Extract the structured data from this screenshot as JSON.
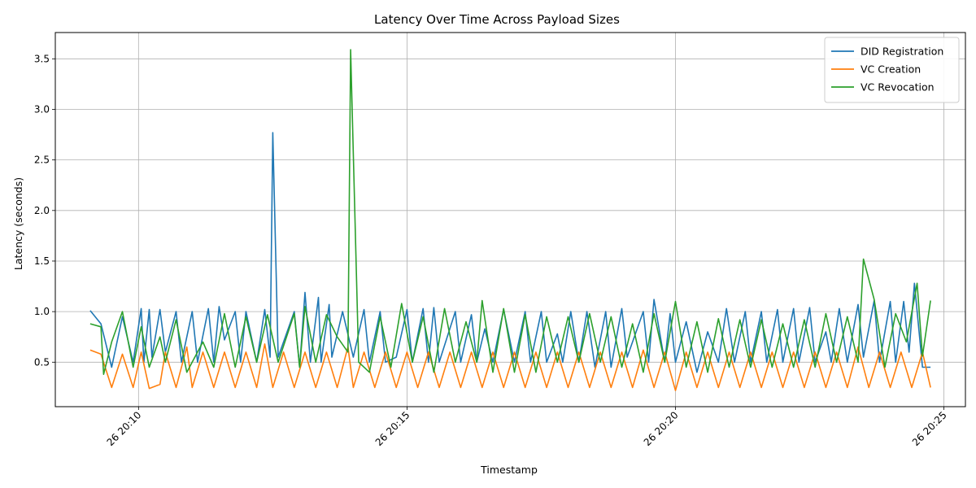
{
  "chart_data": {
    "type": "line",
    "title": "Latency Over Time Across Payload Sizes",
    "xlabel": "Timestamp",
    "ylabel": "Latency (seconds)",
    "x_ticks": [
      "26 20:10",
      "26 20:15",
      "26 20:20",
      "26 20:25"
    ],
    "x_tick_minutes": [
      10,
      15,
      20,
      25
    ],
    "xlim_minutes": [
      8.45,
      25.4
    ],
    "y_ticks": [
      0.5,
      1.0,
      1.5,
      2.0,
      2.5,
      3.0,
      3.5
    ],
    "ylim": [
      0.06,
      3.76
    ],
    "grid": true,
    "legend_position": "top-right",
    "series": [
      {
        "name": "DID Registration",
        "color": "#1f77b4",
        "points": [
          [
            9.1,
            1.01
          ],
          [
            9.3,
            0.88
          ],
          [
            9.5,
            0.45
          ],
          [
            9.7,
            0.95
          ],
          [
            9.9,
            0.5
          ],
          [
            10.05,
            1.03
          ],
          [
            10.1,
            0.5
          ],
          [
            10.2,
            1.02
          ],
          [
            10.25,
            0.55
          ],
          [
            10.4,
            1.02
          ],
          [
            10.5,
            0.6
          ],
          [
            10.7,
            1.0
          ],
          [
            10.8,
            0.5
          ],
          [
            11.0,
            1.0
          ],
          [
            11.1,
            0.5
          ],
          [
            11.3,
            1.03
          ],
          [
            11.4,
            0.5
          ],
          [
            11.5,
            1.05
          ],
          [
            11.6,
            0.72
          ],
          [
            11.8,
            1.0
          ],
          [
            11.9,
            0.5
          ],
          [
            12.0,
            1.0
          ],
          [
            12.2,
            0.5
          ],
          [
            12.35,
            1.02
          ],
          [
            12.45,
            0.55
          ],
          [
            12.5,
            2.77
          ],
          [
            12.6,
            0.55
          ],
          [
            12.9,
            1.0
          ],
          [
            13.0,
            0.45
          ],
          [
            13.1,
            1.19
          ],
          [
            13.2,
            0.5
          ],
          [
            13.35,
            1.14
          ],
          [
            13.4,
            0.5
          ],
          [
            13.55,
            1.07
          ],
          [
            13.6,
            0.55
          ],
          [
            13.8,
            1.0
          ],
          [
            14.0,
            0.55
          ],
          [
            14.2,
            1.02
          ],
          [
            14.3,
            0.5
          ],
          [
            14.5,
            1.0
          ],
          [
            14.6,
            0.5
          ],
          [
            14.8,
            0.55
          ],
          [
            15.0,
            1.02
          ],
          [
            15.1,
            0.5
          ],
          [
            15.3,
            1.03
          ],
          [
            15.4,
            0.5
          ],
          [
            15.5,
            1.04
          ],
          [
            15.6,
            0.5
          ],
          [
            15.9,
            1.0
          ],
          [
            16.0,
            0.5
          ],
          [
            16.2,
            0.97
          ],
          [
            16.3,
            0.5
          ],
          [
            16.45,
            0.83
          ],
          [
            16.6,
            0.5
          ],
          [
            16.8,
            1.02
          ],
          [
            17.0,
            0.5
          ],
          [
            17.2,
            1.0
          ],
          [
            17.3,
            0.5
          ],
          [
            17.5,
            1.0
          ],
          [
            17.6,
            0.5
          ],
          [
            17.8,
            0.78
          ],
          [
            17.9,
            0.5
          ],
          [
            18.05,
            1.0
          ],
          [
            18.2,
            0.5
          ],
          [
            18.35,
            1.0
          ],
          [
            18.5,
            0.45
          ],
          [
            18.7,
            1.0
          ],
          [
            18.8,
            0.45
          ],
          [
            19.0,
            1.03
          ],
          [
            19.1,
            0.55
          ],
          [
            19.4,
            1.0
          ],
          [
            19.5,
            0.5
          ],
          [
            19.6,
            1.12
          ],
          [
            19.8,
            0.5
          ],
          [
            19.9,
            0.98
          ],
          [
            20.0,
            0.5
          ],
          [
            20.2,
            0.9
          ],
          [
            20.4,
            0.4
          ],
          [
            20.6,
            0.8
          ],
          [
            20.8,
            0.5
          ],
          [
            20.95,
            1.03
          ],
          [
            21.1,
            0.5
          ],
          [
            21.3,
            1.0
          ],
          [
            21.4,
            0.5
          ],
          [
            21.6,
            1.0
          ],
          [
            21.7,
            0.5
          ],
          [
            21.9,
            1.02
          ],
          [
            22.0,
            0.5
          ],
          [
            22.2,
            1.03
          ],
          [
            22.3,
            0.5
          ],
          [
            22.5,
            1.04
          ],
          [
            22.6,
            0.5
          ],
          [
            22.8,
            0.8
          ],
          [
            22.9,
            0.5
          ],
          [
            23.05,
            1.03
          ],
          [
            23.2,
            0.5
          ],
          [
            23.4,
            1.07
          ],
          [
            23.5,
            0.55
          ],
          [
            23.7,
            1.11
          ],
          [
            23.8,
            0.5
          ],
          [
            24.0,
            1.1
          ],
          [
            24.1,
            0.5
          ],
          [
            24.25,
            1.1
          ],
          [
            24.35,
            0.6
          ],
          [
            24.45,
            1.28
          ],
          [
            24.6,
            0.45
          ],
          [
            24.75,
            0.45
          ]
        ]
      },
      {
        "name": "VC Creation",
        "color": "#ff7f0e",
        "points": [
          [
            9.1,
            0.62
          ],
          [
            9.3,
            0.58
          ],
          [
            9.5,
            0.25
          ],
          [
            9.7,
            0.58
          ],
          [
            9.9,
            0.25
          ],
          [
            10.05,
            0.6
          ],
          [
            10.2,
            0.24
          ],
          [
            10.4,
            0.28
          ],
          [
            10.5,
            0.6
          ],
          [
            10.7,
            0.25
          ],
          [
            10.9,
            0.65
          ],
          [
            11.0,
            0.25
          ],
          [
            11.2,
            0.6
          ],
          [
            11.4,
            0.25
          ],
          [
            11.6,
            0.6
          ],
          [
            11.8,
            0.25
          ],
          [
            12.0,
            0.6
          ],
          [
            12.2,
            0.25
          ],
          [
            12.35,
            0.68
          ],
          [
            12.5,
            0.25
          ],
          [
            12.7,
            0.6
          ],
          [
            12.9,
            0.25
          ],
          [
            13.1,
            0.6
          ],
          [
            13.3,
            0.25
          ],
          [
            13.5,
            0.6
          ],
          [
            13.7,
            0.25
          ],
          [
            13.9,
            0.65
          ],
          [
            14.0,
            0.25
          ],
          [
            14.2,
            0.6
          ],
          [
            14.4,
            0.25
          ],
          [
            14.6,
            0.6
          ],
          [
            14.8,
            0.25
          ],
          [
            15.0,
            0.6
          ],
          [
            15.2,
            0.25
          ],
          [
            15.4,
            0.6
          ],
          [
            15.6,
            0.25
          ],
          [
            15.8,
            0.6
          ],
          [
            16.0,
            0.25
          ],
          [
            16.2,
            0.6
          ],
          [
            16.4,
            0.25
          ],
          [
            16.6,
            0.6
          ],
          [
            16.8,
            0.25
          ],
          [
            17.0,
            0.6
          ],
          [
            17.2,
            0.25
          ],
          [
            17.4,
            0.6
          ],
          [
            17.6,
            0.25
          ],
          [
            17.8,
            0.6
          ],
          [
            18.0,
            0.25
          ],
          [
            18.2,
            0.6
          ],
          [
            18.4,
            0.25
          ],
          [
            18.6,
            0.6
          ],
          [
            18.8,
            0.25
          ],
          [
            19.0,
            0.6
          ],
          [
            19.2,
            0.25
          ],
          [
            19.4,
            0.62
          ],
          [
            19.6,
            0.25
          ],
          [
            19.8,
            0.6
          ],
          [
            20.0,
            0.22
          ],
          [
            20.2,
            0.6
          ],
          [
            20.4,
            0.25
          ],
          [
            20.6,
            0.6
          ],
          [
            20.8,
            0.25
          ],
          [
            21.0,
            0.6
          ],
          [
            21.2,
            0.25
          ],
          [
            21.4,
            0.6
          ],
          [
            21.6,
            0.25
          ],
          [
            21.8,
            0.6
          ],
          [
            22.0,
            0.25
          ],
          [
            22.2,
            0.6
          ],
          [
            22.4,
            0.25
          ],
          [
            22.6,
            0.6
          ],
          [
            22.8,
            0.25
          ],
          [
            23.0,
            0.6
          ],
          [
            23.2,
            0.25
          ],
          [
            23.4,
            0.65
          ],
          [
            23.6,
            0.25
          ],
          [
            23.8,
            0.6
          ],
          [
            24.0,
            0.25
          ],
          [
            24.2,
            0.6
          ],
          [
            24.4,
            0.25
          ],
          [
            24.6,
            0.6
          ],
          [
            24.75,
            0.25
          ]
        ]
      },
      {
        "name": "VC Revocation",
        "color": "#2ca02c",
        "points": [
          [
            9.1,
            0.88
          ],
          [
            9.3,
            0.85
          ],
          [
            9.35,
            0.38
          ],
          [
            9.5,
            0.7
          ],
          [
            9.7,
            1.0
          ],
          [
            9.9,
            0.45
          ],
          [
            10.05,
            0.85
          ],
          [
            10.2,
            0.45
          ],
          [
            10.4,
            0.75
          ],
          [
            10.5,
            0.5
          ],
          [
            10.7,
            0.92
          ],
          [
            10.9,
            0.4
          ],
          [
            11.0,
            0.5
          ],
          [
            11.2,
            0.7
          ],
          [
            11.4,
            0.45
          ],
          [
            11.6,
            0.98
          ],
          [
            11.8,
            0.45
          ],
          [
            12.0,
            0.95
          ],
          [
            12.2,
            0.5
          ],
          [
            12.4,
            0.97
          ],
          [
            12.6,
            0.5
          ],
          [
            12.9,
            0.98
          ],
          [
            13.0,
            0.45
          ],
          [
            13.1,
            1.05
          ],
          [
            13.3,
            0.5
          ],
          [
            13.5,
            0.97
          ],
          [
            13.7,
            0.75
          ],
          [
            13.9,
            0.6
          ],
          [
            13.95,
            3.59
          ],
          [
            14.1,
            0.5
          ],
          [
            14.3,
            0.4
          ],
          [
            14.5,
            0.95
          ],
          [
            14.7,
            0.45
          ],
          [
            14.9,
            1.08
          ],
          [
            15.1,
            0.5
          ],
          [
            15.3,
            0.95
          ],
          [
            15.5,
            0.4
          ],
          [
            15.7,
            1.03
          ],
          [
            15.9,
            0.5
          ],
          [
            16.1,
            0.9
          ],
          [
            16.3,
            0.5
          ],
          [
            16.4,
            1.11
          ],
          [
            16.6,
            0.4
          ],
          [
            16.8,
            1.03
          ],
          [
            17.0,
            0.4
          ],
          [
            17.2,
            0.97
          ],
          [
            17.4,
            0.4
          ],
          [
            17.6,
            0.95
          ],
          [
            17.8,
            0.5
          ],
          [
            18.0,
            0.95
          ],
          [
            18.2,
            0.5
          ],
          [
            18.4,
            0.98
          ],
          [
            18.6,
            0.5
          ],
          [
            18.8,
            0.95
          ],
          [
            19.0,
            0.45
          ],
          [
            19.2,
            0.88
          ],
          [
            19.4,
            0.4
          ],
          [
            19.6,
            0.98
          ],
          [
            19.8,
            0.5
          ],
          [
            20.0,
            1.1
          ],
          [
            20.2,
            0.45
          ],
          [
            20.4,
            0.9
          ],
          [
            20.6,
            0.4
          ],
          [
            20.8,
            0.93
          ],
          [
            21.0,
            0.45
          ],
          [
            21.2,
            0.92
          ],
          [
            21.4,
            0.45
          ],
          [
            21.6,
            0.92
          ],
          [
            21.8,
            0.45
          ],
          [
            22.0,
            0.88
          ],
          [
            22.2,
            0.45
          ],
          [
            22.4,
            0.92
          ],
          [
            22.6,
            0.45
          ],
          [
            22.8,
            0.98
          ],
          [
            23.0,
            0.5
          ],
          [
            23.2,
            0.95
          ],
          [
            23.4,
            0.5
          ],
          [
            23.5,
            1.52
          ],
          [
            23.7,
            1.12
          ],
          [
            23.9,
            0.45
          ],
          [
            24.1,
            0.98
          ],
          [
            24.3,
            0.7
          ],
          [
            24.5,
            1.28
          ],
          [
            24.6,
            0.56
          ],
          [
            24.75,
            1.11
          ]
        ]
      }
    ]
  }
}
